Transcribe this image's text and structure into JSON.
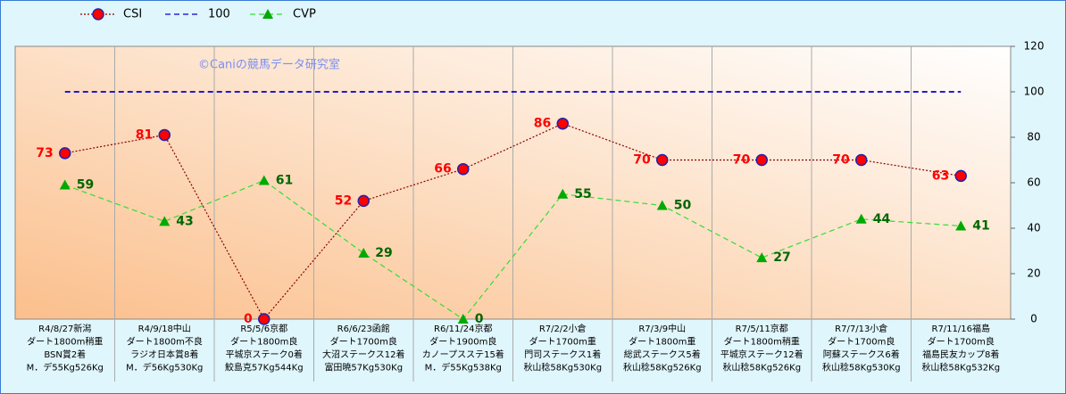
{
  "chart_data": {
    "type": "line",
    "watermark": "©Caniの競馬データ研究室",
    "categories": [
      [
        "R4/8/27新潟",
        "ダート1800m稍重",
        "BSN賞2着",
        "M．デ55Kg526Kg"
      ],
      [
        "R4/9/18中山",
        "ダート1800m不良",
        "ラジオ日本賞8着",
        "M．デ56Kg530Kg"
      ],
      [
        "R5/5/6京都",
        "ダート1800m良",
        "平城京ステーク0着",
        "鮫島克57Kg544Kg"
      ],
      [
        "R6/6/23函館",
        "ダート1700m良",
        "大沼ステークス12着",
        "富田暁57Kg530Kg"
      ],
      [
        "R6/11/24京都",
        "ダート1900m良",
        "カノープスステ15着",
        "M．デ55Kg538Kg"
      ],
      [
        "R7/2/2小倉",
        "ダート1700m重",
        "門司ステークス1着",
        "秋山稔58Kg530Kg"
      ],
      [
        "R7/3/9中山",
        "ダート1800m重",
        "総武ステークス5着",
        "秋山稔58Kg526Kg"
      ],
      [
        "R7/5/11京都",
        "ダート1800m稍重",
        "平城京ステーク12着",
        "秋山稔58Kg526Kg"
      ],
      [
        "R7/7/13小倉",
        "ダート1700m良",
        "阿蘇ステークス6着",
        "秋山稔58Kg530Kg"
      ],
      [
        "R7/11/16福島",
        "ダート1700m良",
        "福島民友カップ8着",
        "秋山稔58Kg532Kg"
      ]
    ],
    "series": [
      {
        "name": "CSI",
        "color": "#8b0000",
        "marker": "circle",
        "marker_color": "#ff0000",
        "line_style": "dotted",
        "label_color": "#ff0000",
        "label_side": "left",
        "values": [
          73,
          81,
          0,
          52,
          66,
          86,
          70,
          70,
          70,
          63
        ]
      },
      {
        "name": "100",
        "color": "#0000cc",
        "marker": "none",
        "line_style": "dashed",
        "values": [
          100,
          100,
          100,
          100,
          100,
          100,
          100,
          100,
          100,
          100
        ]
      },
      {
        "name": "CVP",
        "color": "#33dd33",
        "marker": "triangle",
        "marker_color": "#00aa00",
        "line_style": "dashed",
        "label_color": "#006600",
        "label_side": "right",
        "values": [
          59,
          43,
          61,
          29,
          0,
          55,
          50,
          27,
          44,
          41
        ]
      }
    ],
    "ylim": [
      0,
      120
    ],
    "yticks": [
      0,
      20,
      40,
      60,
      80,
      100,
      120
    ],
    "y_axis_side": "right"
  }
}
